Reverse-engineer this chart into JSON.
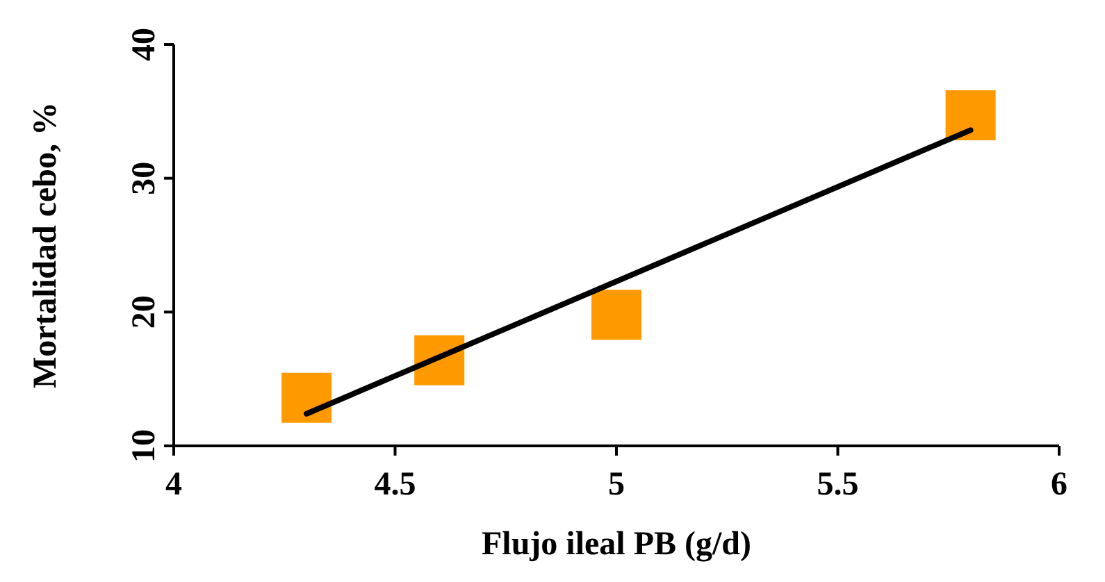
{
  "chart_data": {
    "type": "scatter",
    "xlabel": "Flujo ileal PB (g/d)",
    "ylabel": "Mortalidad cebo, %",
    "xlim": [
      4,
      6
    ],
    "xticks": [
      4,
      4.5,
      5,
      5.5,
      6
    ],
    "ylim": [
      10,
      40
    ],
    "yticks": [
      10,
      20,
      30,
      40
    ],
    "grid": false,
    "series": [
      {
        "color": "#ff9900",
        "marker": "square",
        "x": [
          4.3,
          4.6,
          5.0,
          5.8
        ],
        "values": [
          13.6,
          16.4,
          19.8,
          34.7
        ]
      },
      {
        "type": "line",
        "color": "#000000",
        "marker": "none",
        "line_style": "solid",
        "x": [
          4.3,
          5.8
        ],
        "values": [
          12.4,
          33.6
        ]
      }
    ]
  }
}
